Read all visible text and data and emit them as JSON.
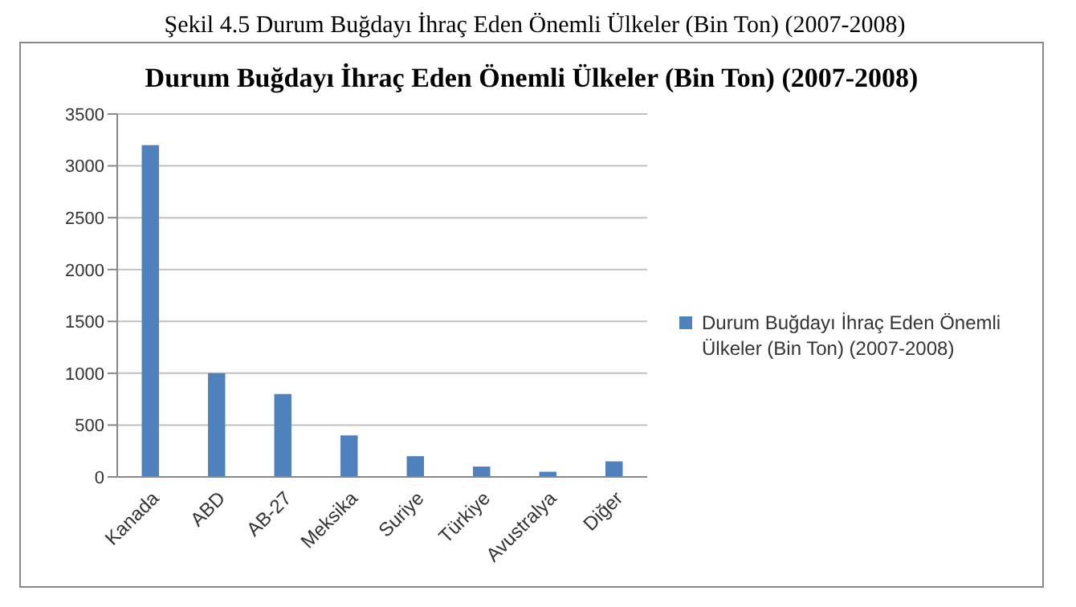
{
  "chart_data": {
    "type": "bar",
    "title": "Durum Buğdayı İhraç Eden Önemli Ülkeler (Bin Ton) (2007-2008)",
    "annotations": [
      "Şekil 4.5 Durum Buğdayı İhraç Eden Önemli Ülkeler (Bin Ton) (2007-2008)"
    ],
    "categories": [
      "Kanada",
      "ABD",
      "AB-27",
      "Meksika",
      "Suriye",
      "Türkiye",
      "Avustralya",
      "Diğer"
    ],
    "series": [
      {
        "name": "Durum Buğdayı İhraç Eden Önemli Ülkeler (Bin Ton) (2007-2008)",
        "color": "#4f81bd",
        "values": [
          3200,
          1000,
          800,
          400,
          200,
          100,
          50,
          150
        ]
      }
    ],
    "ylim": [
      0,
      3500
    ],
    "yticks": [
      0,
      500,
      1000,
      1500,
      2000,
      2500,
      3000,
      3500
    ],
    "grid": "y",
    "legend": "right"
  }
}
